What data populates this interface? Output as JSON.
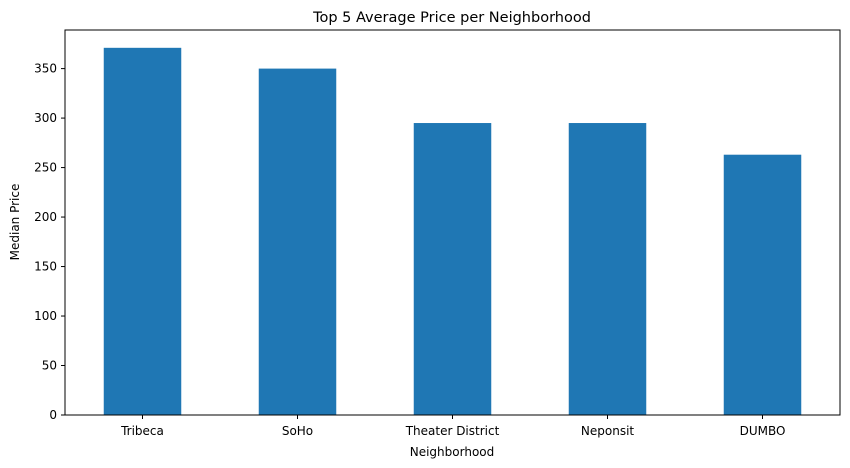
{
  "chart_data": {
    "type": "bar",
    "title": "Top 5 Average Price per Neighborhood",
    "xlabel": "Neighborhood",
    "ylabel": "Median Price",
    "categories": [
      "Tribeca",
      "SoHo",
      "Theater District",
      "Neponsit",
      "DUMBO"
    ],
    "values": [
      371,
      350,
      295,
      295,
      263
    ],
    "ylim": [
      0,
      389
    ],
    "yticks": [
      0,
      50,
      100,
      150,
      200,
      250,
      300,
      350
    ],
    "grid": false,
    "legend": "none",
    "bar_color": "#1f77b4"
  }
}
